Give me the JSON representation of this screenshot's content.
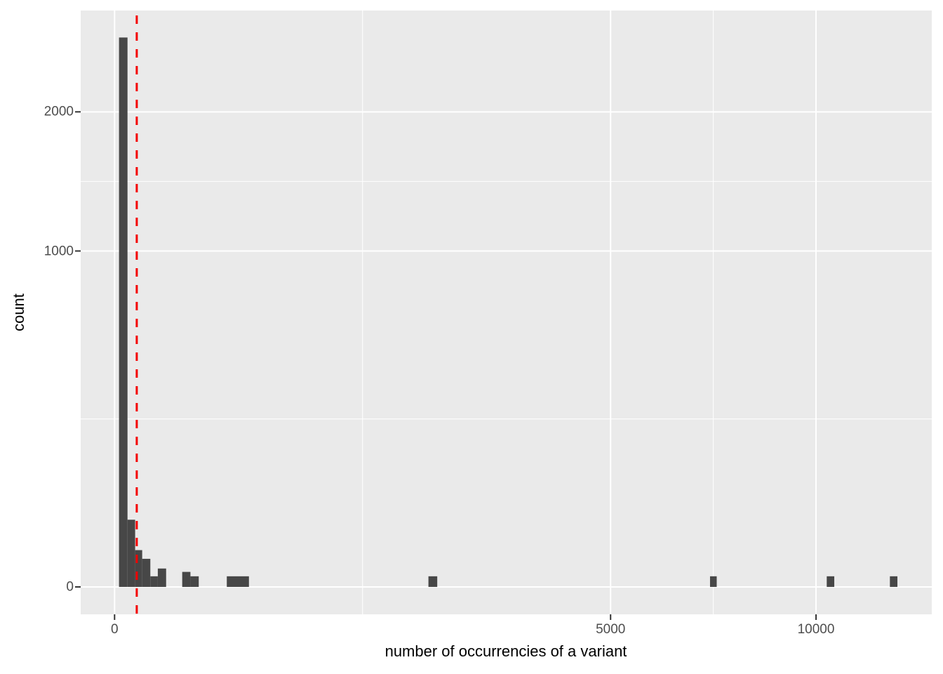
{
  "chart_data": {
    "type": "bar",
    "subtype": "histogram",
    "title": "",
    "xlabel": "number of occurrencies of a variant",
    "ylabel": "count",
    "x_scale": "sqrt",
    "y_scale": "sqrt",
    "x_ticks": [
      0,
      5000,
      10000
    ],
    "y_ticks": [
      0,
      1000,
      2000
    ],
    "xlim_t": [
      -4.83,
      116.5
    ],
    "ylim_t": [
      -2.58,
      54.26
    ],
    "grid": "major-and-minor",
    "legend": "none",
    "bars": [
      {
        "x0": 0.4,
        "x1": 3.4,
        "count": 2675
      },
      {
        "x0": 3.4,
        "x1": 8.6,
        "count": 40
      },
      {
        "x0": 8.6,
        "x1": 15.5,
        "count": 12
      },
      {
        "x0": 15.5,
        "x1": 26,
        "count": 7
      },
      {
        "x0": 26,
        "x1": 38,
        "count": 1
      },
      {
        "x0": 38,
        "x1": 54,
        "count": 3
      },
      {
        "x0": 93,
        "x1": 117,
        "count": 2
      },
      {
        "x0": 117,
        "x1": 144,
        "count": 1
      },
      {
        "x0": 256,
        "x1": 367,
        "count": 1
      },
      {
        "x0": 2002,
        "x1": 2116,
        "count": 1
      },
      {
        "x0": 7206,
        "x1": 7369,
        "count": 1
      },
      {
        "x0": 10308,
        "x1": 10527,
        "count": 1
      },
      {
        "x0": 12217,
        "x1": 12455,
        "count": 1
      }
    ],
    "vline": {
      "x": 10,
      "color": "#F40000",
      "dash": [
        12,
        12
      ],
      "width": 3
    },
    "colors": {
      "bar": "#474747",
      "panel_background": "#EAEAEA",
      "gridline": "#FFFFFF",
      "tick_text": "#4D4D4D",
      "axis_title": "#000000",
      "tick_mark": "#333333",
      "figure_background": "#FFFFFF"
    }
  }
}
